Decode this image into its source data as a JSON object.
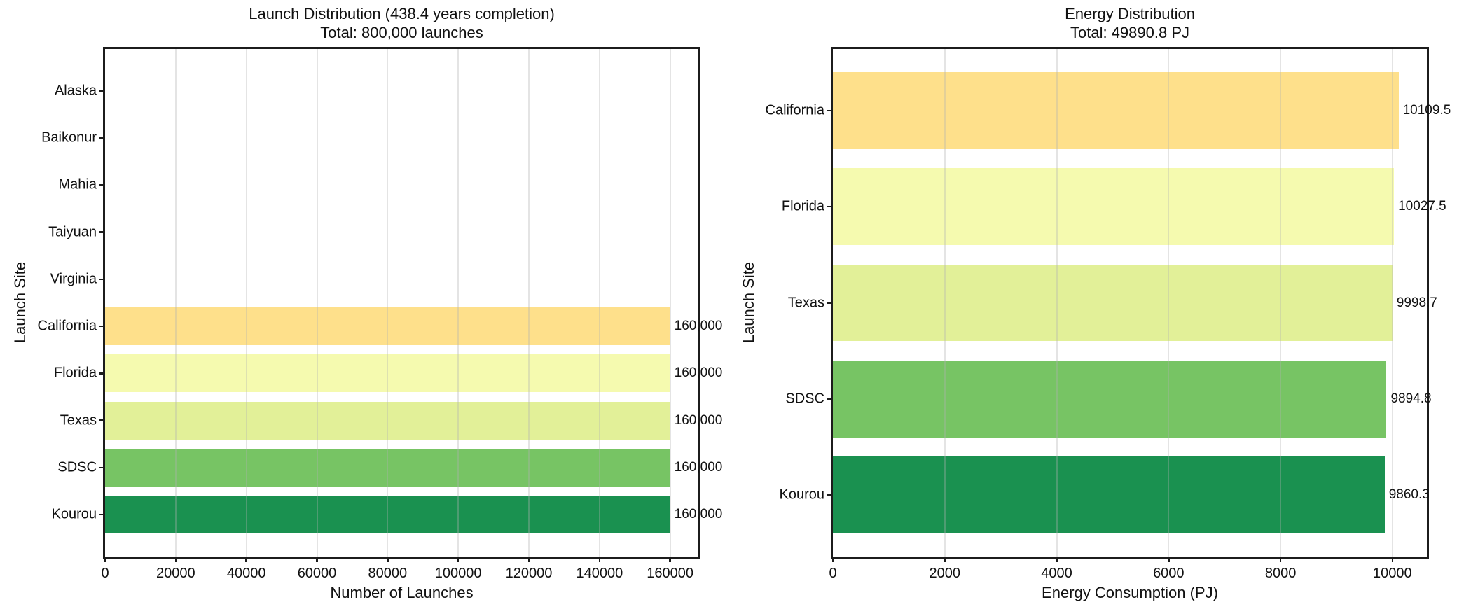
{
  "figure": {
    "background": "#ffffff",
    "text_color": "#111111",
    "spine_color": "#1c1c1c",
    "grid_color": "#e6e6e6"
  },
  "chart_data": [
    {
      "type": "bar",
      "orientation": "horizontal",
      "title": "Launch Distribution (438.4 years completion)",
      "subtitle": "Total: 800,000 launches",
      "xlabel": "Number of Launches",
      "ylabel": "Launch Site",
      "categories": [
        "Alaska",
        "Baikonur",
        "Mahia",
        "Taiyuan",
        "Virginia",
        "California",
        "Florida",
        "Texas",
        "SDSC",
        "Kourou"
      ],
      "values": [
        0,
        0,
        0,
        0,
        0,
        160000,
        160000,
        160000,
        160000,
        160000
      ],
      "bar_labels": [
        "",
        "",
        "",
        "",
        "",
        "160,000",
        "160,000",
        "160,000",
        "160,000",
        "160,000"
      ],
      "bar_colors": [
        "",
        "",
        "",
        "",
        "",
        "#FEE08B",
        "#F5FAAF",
        "#E2F098",
        "#77C464",
        "#1A9150"
      ],
      "xlim": [
        0,
        168000
      ],
      "xticks": [
        0,
        20000,
        40000,
        60000,
        80000,
        100000,
        120000,
        140000,
        160000
      ],
      "xtick_labels": [
        "0",
        "20000",
        "40000",
        "60000",
        "80000",
        "100000",
        "120000",
        "140000",
        "160000"
      ],
      "grid": "x",
      "legend": null
    },
    {
      "type": "bar",
      "orientation": "horizontal",
      "title": "Energy Distribution",
      "subtitle": "Total: 49890.8 PJ",
      "xlabel": "Energy Consumption (PJ)",
      "ylabel": "Launch Site",
      "categories": [
        "California",
        "Florida",
        "Texas",
        "SDSC",
        "Kourou"
      ],
      "values": [
        10109.5,
        10027.5,
        9998.7,
        9894.8,
        9860.3
      ],
      "bar_labels": [
        "10109.5",
        "10027.5",
        "9998.7",
        "9894.8",
        "9860.3"
      ],
      "bar_colors": [
        "#FEE08B",
        "#F5FAAF",
        "#E2F098",
        "#77C464",
        "#1A9150"
      ],
      "xlim": [
        0,
        10615
      ],
      "xticks": [
        0,
        2000,
        4000,
        6000,
        8000,
        10000
      ],
      "xtick_labels": [
        "0",
        "2000",
        "4000",
        "6000",
        "8000",
        "10000"
      ],
      "grid": "x",
      "legend": null
    }
  ]
}
